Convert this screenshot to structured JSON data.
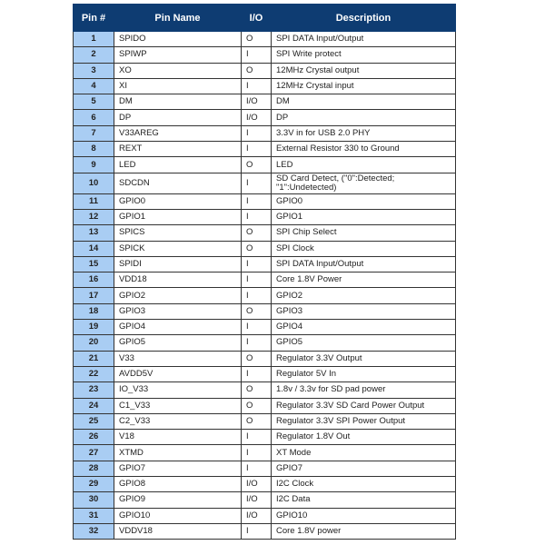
{
  "headers": {
    "pin": "Pin #",
    "name": "Pin Name",
    "io": "I/O",
    "desc": "Description"
  },
  "colors": {
    "header": "#0e3c72",
    "pin_column": "#a9cdf3"
  },
  "rows": [
    {
      "pin": "1",
      "name": "SPIDO",
      "io": "O",
      "desc": "SPI DATA Input/Output"
    },
    {
      "pin": "2",
      "name": "SPIWP",
      "io": "I",
      "desc": "SPI Write protect"
    },
    {
      "pin": "3",
      "name": "XO",
      "io": "O",
      "desc": "12MHz Crystal output"
    },
    {
      "pin": "4",
      "name": "XI",
      "io": "I",
      "desc": "12MHz Crystal input"
    },
    {
      "pin": "5",
      "name": "DM",
      "io": "I/O",
      "desc": "DM"
    },
    {
      "pin": "6",
      "name": "DP",
      "io": "I/O",
      "desc": "DP"
    },
    {
      "pin": "7",
      "name": "V33AREG",
      "io": "I",
      "desc": "3.3V in for USB 2.0 PHY"
    },
    {
      "pin": "8",
      "name": "REXT",
      "io": "I",
      "desc": "External Resistor 330 to Ground"
    },
    {
      "pin": "9",
      "name": "LED",
      "io": "O",
      "desc": "LED"
    },
    {
      "pin": "10",
      "name": "SDCDN",
      "io": "I",
      "desc": "SD Card Detect, (\"0\":Detected; \"1\":Undetected)"
    },
    {
      "pin": "11",
      "name": "GPIO0",
      "io": "I",
      "desc": "GPIO0"
    },
    {
      "pin": "12",
      "name": "GPIO1",
      "io": "I",
      "desc": "GPIO1"
    },
    {
      "pin": "13",
      "name": "SPICS",
      "io": "O",
      "desc": "SPI Chip Select"
    },
    {
      "pin": "14",
      "name": "SPICK",
      "io": "O",
      "desc": "SPI Clock"
    },
    {
      "pin": "15",
      "name": "SPIDI",
      "io": "I",
      "desc": "SPI DATA Input/Output"
    },
    {
      "pin": "16",
      "name": "VDD18",
      "io": "I",
      "desc": "Core 1.8V Power"
    },
    {
      "pin": "17",
      "name": "GPIO2",
      "io": "I",
      "desc": "GPIO2"
    },
    {
      "pin": "18",
      "name": "GPIO3",
      "io": "O",
      "desc": "GPIO3"
    },
    {
      "pin": "19",
      "name": "GPIO4",
      "io": "I",
      "desc": "GPIO4"
    },
    {
      "pin": "20",
      "name": "GPIO5",
      "io": "I",
      "desc": "GPIO5"
    },
    {
      "pin": "21",
      "name": "V33",
      "io": "O",
      "desc": "Regulator 3.3V Output"
    },
    {
      "pin": "22",
      "name": "AVDD5V",
      "io": "I",
      "desc": "Regulator 5V In"
    },
    {
      "pin": "23",
      "name": "IO_V33",
      "io": "O",
      "desc": "1.8v / 3.3v for SD pad power"
    },
    {
      "pin": "24",
      "name": "C1_V33",
      "io": "O",
      "desc": "Regulator 3.3V SD Card Power Output"
    },
    {
      "pin": "25",
      "name": "C2_V33",
      "io": "O",
      "desc": "Regulator 3.3V SPI Power Output"
    },
    {
      "pin": "26",
      "name": "V18",
      "io": "I",
      "desc": "Regulator 1.8V Out"
    },
    {
      "pin": "27",
      "name": "XTMD",
      "io": "I",
      "desc": "XT Mode"
    },
    {
      "pin": "28",
      "name": "GPIO7",
      "io": "I",
      "desc": "GPIO7"
    },
    {
      "pin": "29",
      "name": "GPIO8",
      "io": "I/O",
      "desc": "I2C Clock"
    },
    {
      "pin": "30",
      "name": "GPIO9",
      "io": "I/O",
      "desc": "I2C Data"
    },
    {
      "pin": "31",
      "name": "GPIO10",
      "io": "I/O",
      "desc": "GPIO10"
    },
    {
      "pin": "32",
      "name": "VDDV18",
      "io": "I",
      "desc": "Core 1.8V power"
    }
  ]
}
